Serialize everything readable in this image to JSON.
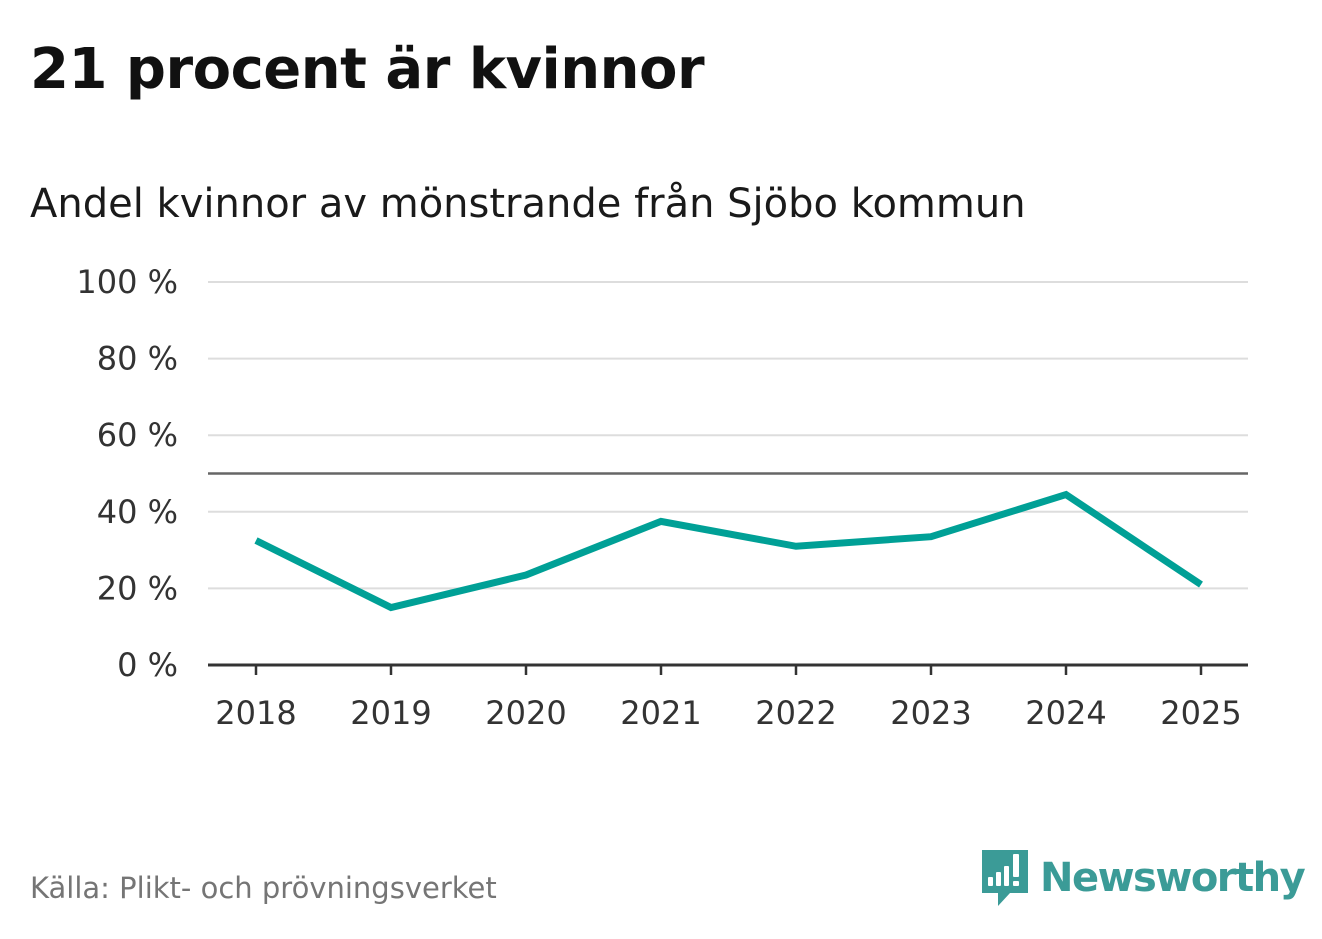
{
  "title": "21 procent är kvinnor",
  "subtitle": "Andel kvinnor av mönstrande från Sjöbo kommun",
  "source": "Källa: Plikt- och prövningsverket",
  "logo": {
    "text": "Newsworthy",
    "icon": "bar-chart-speech-bubble-icon",
    "color": "#3b9b97"
  },
  "colors": {
    "line": "#00a096",
    "grid": "#dddddd",
    "reference": "#666666",
    "axis": "#333333"
  },
  "chart_data": {
    "type": "line",
    "categories": [
      "2018",
      "2019",
      "2020",
      "2021",
      "2022",
      "2023",
      "2024",
      "2025"
    ],
    "series": [
      {
        "values": [
          32.5,
          15,
          23.5,
          37.5,
          31,
          33.5,
          44.5,
          21
        ]
      }
    ],
    "ylim": [
      0,
      100
    ],
    "yticks": [
      0,
      20,
      40,
      60,
      80,
      100
    ],
    "ytick_labels": [
      "0 %",
      "20 %",
      "40 %",
      "60 %",
      "80 %",
      "100 %"
    ],
    "reference_line": 50,
    "grid": true,
    "legend": "none"
  }
}
